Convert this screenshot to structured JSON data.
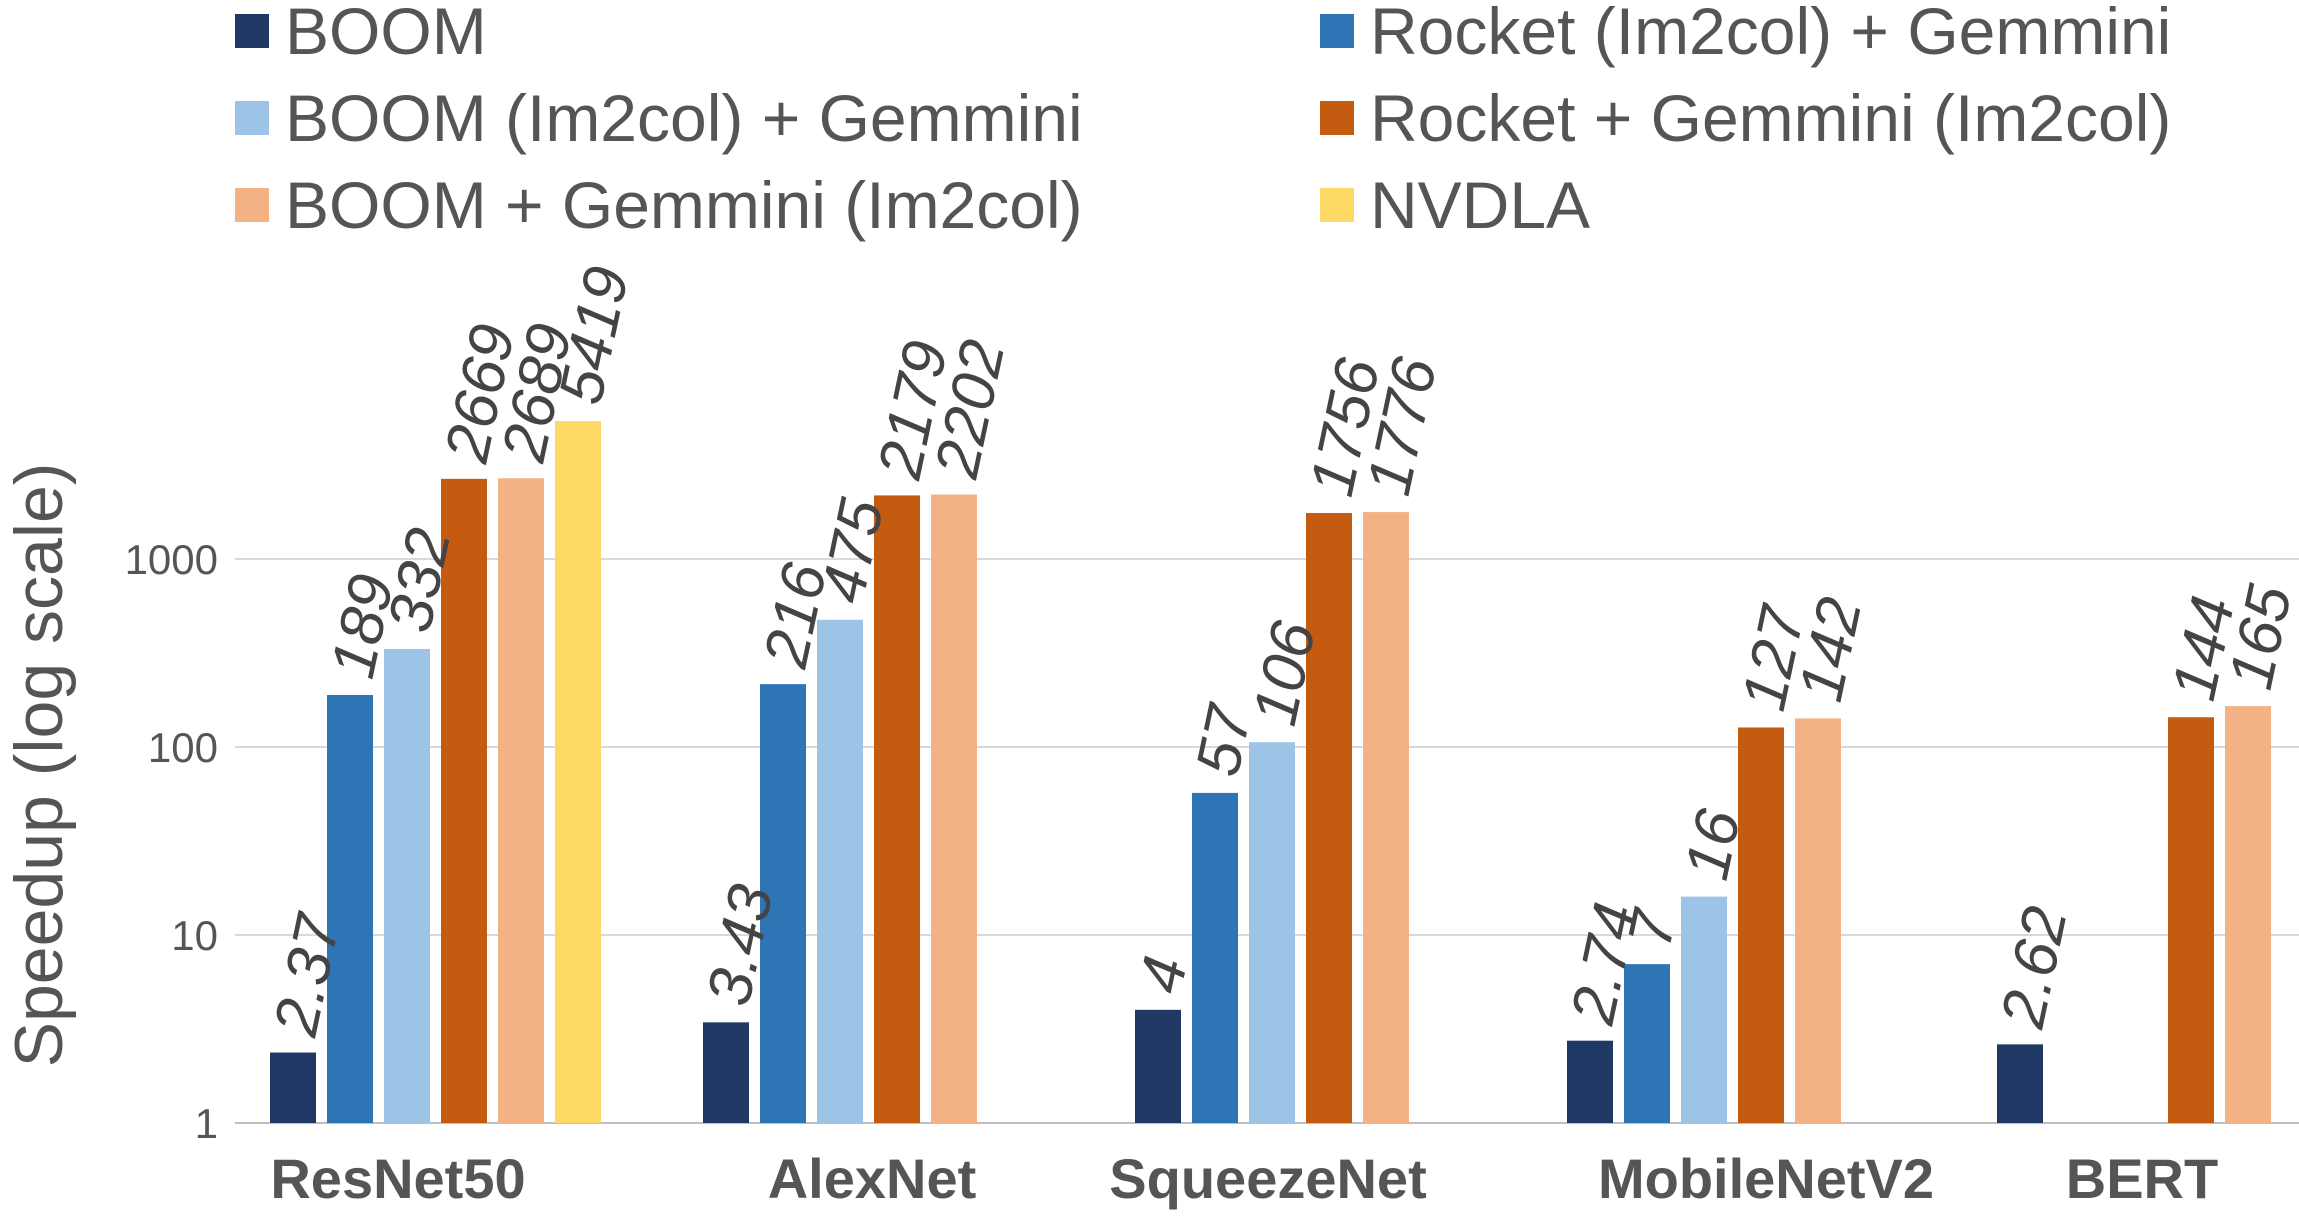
{
  "chart_data": {
    "type": "bar",
    "title": "",
    "xlabel": "",
    "ylabel": "Speedup (log scale)",
    "y_scale": "log",
    "ylim": [
      1,
      10000
    ],
    "y_ticks": [
      "1",
      "10",
      "100",
      "1000"
    ],
    "grid": true,
    "legend_position": "top",
    "categories": [
      "ResNet50",
      "AlexNet",
      "SqueezeNet",
      "MobileNetV2",
      "BERT"
    ],
    "series": [
      {
        "name": "BOOM",
        "color": "#1f3864",
        "values": [
          2.37,
          3.43,
          4,
          2.74,
          2.62
        ],
        "labels": [
          "2.37",
          "3.43",
          "4",
          "2.74",
          "2.62"
        ]
      },
      {
        "name": "Rocket (Im2col) + Gemmini",
        "color": "#2e75b6",
        "values": [
          189,
          216,
          57,
          7,
          null
        ],
        "labels": [
          "189",
          "216",
          "57",
          "7",
          null
        ]
      },
      {
        "name": "BOOM (Im2col) + Gemmini",
        "color": "#9dc3e6",
        "values": [
          332,
          475,
          106,
          16,
          null
        ],
        "labels": [
          "332",
          "475",
          "106",
          "16",
          null
        ]
      },
      {
        "name": "Rocket + Gemmini (Im2col)",
        "color": "#c55a11",
        "values": [
          2669,
          2179,
          1756,
          127,
          144
        ],
        "labels": [
          "2669",
          "2179",
          "1756",
          "127",
          "144"
        ]
      },
      {
        "name": "BOOM + Gemmini (Im2col)",
        "color": "#f4b183",
        "values": [
          2689,
          2202,
          1776,
          142,
          165
        ],
        "labels": [
          "2689",
          "2202",
          "1776",
          "142",
          "165"
        ]
      },
      {
        "name": "NVDLA",
        "color": "#ffd966",
        "values": [
          5419,
          null,
          null,
          null,
          null
        ],
        "labels": [
          "5419",
          null,
          null,
          null,
          null
        ]
      }
    ]
  }
}
